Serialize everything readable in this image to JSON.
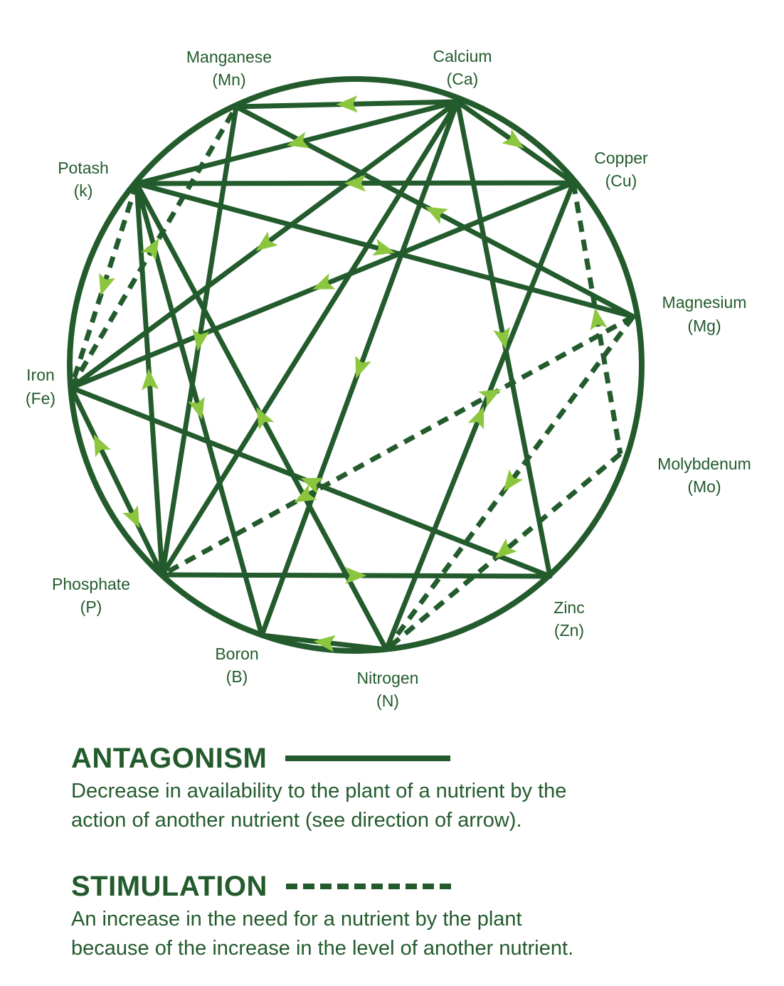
{
  "colors": {
    "line": "#235b2d",
    "arrow": "#8cc63f",
    "background": "#ffffff"
  },
  "nodes": [
    {
      "id": "mn",
      "name": "Manganese",
      "symbol": "(Mn)"
    },
    {
      "id": "ca",
      "name": "Calcium",
      "symbol": "(Ca)"
    },
    {
      "id": "cu",
      "name": "Copper",
      "symbol": "(Cu)"
    },
    {
      "id": "k",
      "name": "Potash",
      "symbol": "(k)"
    },
    {
      "id": "mg",
      "name": "Magnesium",
      "symbol": "(Mg)"
    },
    {
      "id": "fe",
      "name": "Iron",
      "symbol": "(Fe)"
    },
    {
      "id": "mo",
      "name": "Molybdenum",
      "symbol": "(Mo)"
    },
    {
      "id": "p",
      "name": "Phosphate",
      "symbol": "(P)"
    },
    {
      "id": "zn",
      "name": "Zinc",
      "symbol": "(Zn)"
    },
    {
      "id": "b",
      "name": "Boron",
      "symbol": "(B)"
    },
    {
      "id": "n",
      "name": "Nitrogen",
      "symbol": "(N)"
    }
  ],
  "edges": [
    {
      "from": "ca",
      "to": "mn",
      "type": "antagonism",
      "arrow": "forward"
    },
    {
      "from": "ca",
      "to": "k",
      "type": "antagonism",
      "arrow": "forward"
    },
    {
      "from": "ca",
      "to": "cu",
      "type": "antagonism",
      "arrow": "forward"
    },
    {
      "from": "ca",
      "to": "fe",
      "type": "antagonism",
      "arrow": "forward"
    },
    {
      "from": "ca",
      "to": "b",
      "type": "antagonism",
      "arrow": "forward"
    },
    {
      "from": "ca",
      "to": "zn",
      "type": "antagonism",
      "arrow": "forward"
    },
    {
      "from": "ca",
      "to": "p",
      "type": "antagonism",
      "arrow": "none"
    },
    {
      "from": "mg",
      "to": "mn",
      "type": "antagonism",
      "arrow": "forward"
    },
    {
      "from": "mn",
      "to": "p",
      "type": "antagonism",
      "arrow": "forward"
    },
    {
      "from": "k",
      "to": "mg",
      "type": "antagonism",
      "arrow": "forward"
    },
    {
      "from": "k",
      "to": "p",
      "type": "antagonism",
      "arrow": "backward"
    },
    {
      "from": "k",
      "to": "b",
      "type": "antagonism",
      "arrow": "forward"
    },
    {
      "from": "k",
      "to": "n",
      "type": "antagonism",
      "arrow": "backward"
    },
    {
      "from": "cu",
      "to": "k",
      "type": "antagonism",
      "arrow": "forward"
    },
    {
      "from": "cu",
      "to": "fe",
      "type": "antagonism",
      "arrow": "forward"
    },
    {
      "from": "cu",
      "to": "n",
      "type": "antagonism",
      "arrow": "backward"
    },
    {
      "from": "zn",
      "to": "fe",
      "type": "antagonism",
      "arrow": "forward"
    },
    {
      "from": "p",
      "to": "zn",
      "type": "antagonism",
      "arrow": "forward"
    },
    {
      "from": "fe",
      "to": "p",
      "type": "antagonism",
      "arrow": "both"
    },
    {
      "from": "n",
      "to": "b",
      "type": "antagonism",
      "arrow": "forward"
    },
    {
      "from": "fe",
      "to": "mn",
      "type": "stimulation",
      "arrow": "forward"
    },
    {
      "from": "k",
      "to": "fe",
      "type": "stimulation",
      "arrow": "forward"
    },
    {
      "from": "mg",
      "to": "p",
      "type": "stimulation",
      "arrow": "both"
    },
    {
      "from": "mg",
      "to": "n",
      "type": "stimulation",
      "arrow": "forward"
    },
    {
      "from": "cu",
      "to": "mo",
      "type": "stimulation",
      "arrow": "backward"
    },
    {
      "from": "mo",
      "to": "n",
      "type": "stimulation",
      "arrow": "forward"
    }
  ],
  "legend": {
    "antagonism": {
      "title": "ANTAGONISM",
      "line1": "Decrease in availability to the plant of a nutrient by the",
      "line2": "action of another nutrient (see direction of arrow)."
    },
    "stimulation": {
      "title": "STIMULATION",
      "line1": "An increase in the need for a nutrient by the plant",
      "line2": "because of the increase in the level of another nutrient."
    }
  }
}
